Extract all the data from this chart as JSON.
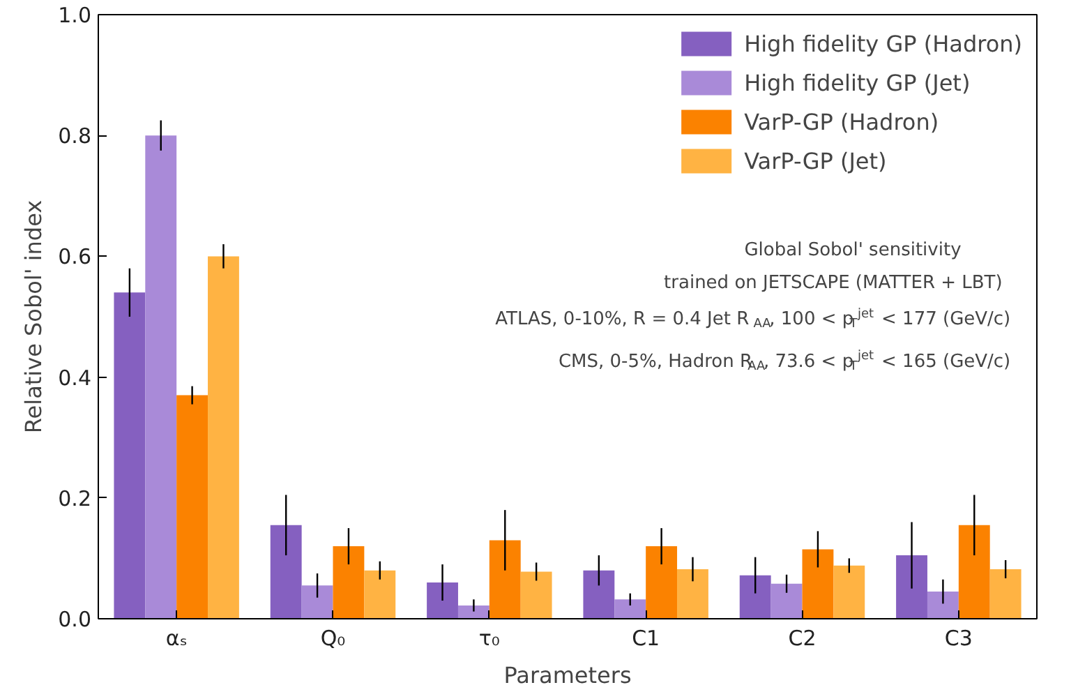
{
  "chart_data": {
    "type": "bar",
    "categories": [
      "αₛ",
      "Q₀",
      "τ₀",
      "C1",
      "C2",
      "C3"
    ],
    "xlabel": "Parameters",
    "ylabel": "Relative Sobol' index",
    "ylim": [
      0,
      1
    ],
    "yticks": [
      {
        "value": 0,
        "label": "0.0"
      },
      {
        "value": 0.2,
        "label": "0.2"
      },
      {
        "value": 0.4,
        "label": "0.4"
      },
      {
        "value": 0.6,
        "label": "0.6"
      },
      {
        "value": 0.8,
        "label": "0.8"
      },
      {
        "value": 1,
        "label": "1.0"
      }
    ],
    "grid": false,
    "legend": "top right",
    "series": [
      {
        "name": "High fidelity GP (Hadron)",
        "color": "#8560c0",
        "values": [
          0.54,
          0.155,
          0.06,
          0.08,
          0.072,
          0.105
        ],
        "errors": [
          0.04,
          0.05,
          0.03,
          0.025,
          0.03,
          0.055
        ]
      },
      {
        "name": "High fidelity GP (Jet)",
        "color": "#a98ad8",
        "values": [
          0.8,
          0.055,
          0.022,
          0.032,
          0.058,
          0.045
        ],
        "errors": [
          0.025,
          0.02,
          0.01,
          0.01,
          0.015,
          0.02
        ]
      },
      {
        "name": "VarP-GP (Hadron)",
        "color": "#fb8200",
        "values": [
          0.37,
          0.12,
          0.13,
          0.12,
          0.115,
          0.155
        ],
        "errors": [
          0.015,
          0.03,
          0.05,
          0.03,
          0.03,
          0.05
        ]
      },
      {
        "name": "VarP-GP (Jet)",
        "color": "#ffb343",
        "values": [
          0.6,
          0.08,
          0.078,
          0.082,
          0.088,
          0.082
        ],
        "errors": [
          0.02,
          0.015,
          0.015,
          0.02,
          0.012,
          0.015
        ]
      }
    ],
    "annotations": [
      "Global Sobol' sensitivity",
      "trained on JETSCAPE (MATTER + LBT)",
      "ATLAS, 0-10%, R = 0.4 Jet R$_{AA}$, 100 < p$_{T}$$^{jet}$ < 177 (GeV/c)",
      "CMS, 0-5%, Hadron R$_{AA}$, 73.6 < p$_{T}$$^{jet}$ < 165 (GeV/c)"
    ]
  }
}
